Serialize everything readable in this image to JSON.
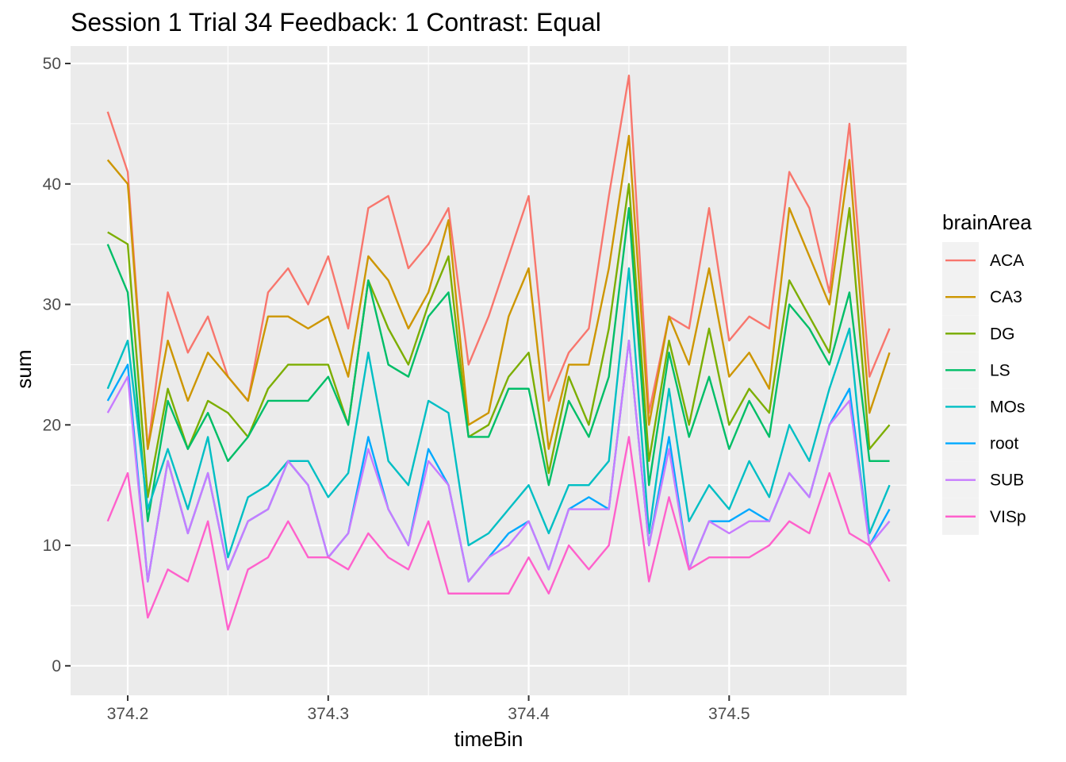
{
  "chart_data": {
    "type": "line",
    "title": "Session 1 Trial 34 Feedback: 1 Contrast: Equal",
    "xlabel": "timeBin",
    "ylabel": "sum",
    "xlim": [
      374.1715,
      374.5885
    ],
    "ylim": [
      -2.45,
      51.45
    ],
    "x_ticks": [
      374.2,
      374.3,
      374.4,
      374.5
    ],
    "x_tick_labels": [
      "374.2",
      "374.3",
      "374.4",
      "374.5"
    ],
    "y_ticks": [
      0,
      10,
      20,
      30,
      40,
      50
    ],
    "y_tick_labels": [
      "0",
      "10",
      "20",
      "30",
      "40",
      "50"
    ],
    "grid": true,
    "legend": {
      "title": "brainArea",
      "position": "right"
    },
    "x": [
      374.19,
      374.2,
      374.21,
      374.22,
      374.23,
      374.24,
      374.25,
      374.26,
      374.27,
      374.28,
      374.29,
      374.3,
      374.31,
      374.32,
      374.33,
      374.34,
      374.35,
      374.36,
      374.37,
      374.38,
      374.39,
      374.4,
      374.41,
      374.42,
      374.43,
      374.44,
      374.45,
      374.46,
      374.47,
      374.48,
      374.49,
      374.5,
      374.51,
      374.52,
      374.53,
      374.54,
      374.55,
      374.56,
      374.57,
      374.58
    ],
    "series": [
      {
        "name": "ACA",
        "color": "#F8766D",
        "values": [
          46,
          41,
          18,
          31,
          26,
          29,
          24,
          22,
          31,
          33,
          30,
          34,
          28,
          38,
          39,
          33,
          35,
          38,
          25,
          29,
          34,
          39,
          22,
          26,
          28,
          39,
          49,
          21,
          29,
          28,
          38,
          27,
          29,
          28,
          41,
          38,
          31,
          45,
          24,
          28
        ]
      },
      {
        "name": "CA3",
        "color": "#CD9600",
        "values": [
          42,
          40,
          18,
          27,
          22,
          26,
          24,
          22,
          29,
          29,
          28,
          29,
          24,
          34,
          32,
          28,
          31,
          37,
          20,
          21,
          29,
          33,
          18,
          25,
          25,
          33,
          44,
          20,
          29,
          25,
          33,
          24,
          26,
          23,
          38,
          34,
          30,
          42,
          21,
          26
        ]
      },
      {
        "name": "DG",
        "color": "#7CAE00",
        "values": [
          36,
          35,
          14,
          23,
          18,
          22,
          21,
          19,
          23,
          25,
          25,
          25,
          20,
          32,
          28,
          25,
          30,
          34,
          19,
          20,
          24,
          26,
          16,
          24,
          20,
          28,
          40,
          17,
          27,
          20,
          28,
          20,
          23,
          21,
          32,
          29,
          26,
          38,
          18,
          20
        ]
      },
      {
        "name": "LS",
        "color": "#00BE67",
        "values": [
          35,
          31,
          12,
          22,
          18,
          21,
          17,
          19,
          22,
          22,
          22,
          24,
          20,
          32,
          25,
          24,
          29,
          31,
          19,
          19,
          23,
          23,
          15,
          22,
          19,
          24,
          38,
          15,
          26,
          19,
          24,
          18,
          22,
          19,
          30,
          28,
          25,
          31,
          17,
          17
        ]
      },
      {
        "name": "MOs",
        "color": "#00BFC4",
        "values": [
          23,
          27,
          13,
          18,
          13,
          19,
          9,
          14,
          15,
          17,
          17,
          14,
          16,
          26,
          17,
          15,
          22,
          21,
          10,
          11,
          13,
          15,
          11,
          15,
          15,
          17,
          33,
          11,
          23,
          12,
          15,
          13,
          17,
          14,
          20,
          17,
          23,
          28,
          11,
          15
        ]
      },
      {
        "name": "root",
        "color": "#00A9FF",
        "values": [
          22,
          25,
          7,
          17,
          11,
          16,
          8,
          12,
          13,
          17,
          15,
          9,
          11,
          19,
          13,
          10,
          18,
          15,
          7,
          9,
          11,
          12,
          8,
          13,
          14,
          13,
          27,
          10,
          19,
          8,
          12,
          12,
          13,
          12,
          16,
          14,
          20,
          23,
          10,
          13
        ]
      },
      {
        "name": "SUB",
        "color": "#C77CFF",
        "values": [
          21,
          24,
          7,
          17,
          11,
          16,
          8,
          12,
          13,
          17,
          15,
          9,
          11,
          18,
          13,
          10,
          17,
          15,
          7,
          9,
          10,
          12,
          8,
          13,
          13,
          13,
          27,
          10,
          18,
          8,
          12,
          11,
          12,
          12,
          16,
          14,
          20,
          22,
          10,
          12
        ]
      },
      {
        "name": "VISp",
        "color": "#FF61CC",
        "values": [
          12,
          16,
          4,
          8,
          7,
          12,
          3,
          8,
          9,
          12,
          9,
          9,
          8,
          11,
          9,
          8,
          12,
          6,
          6,
          6,
          6,
          9,
          6,
          10,
          8,
          10,
          19,
          7,
          14,
          8,
          9,
          9,
          9,
          10,
          12,
          11,
          16,
          11,
          10,
          7
        ]
      }
    ]
  }
}
